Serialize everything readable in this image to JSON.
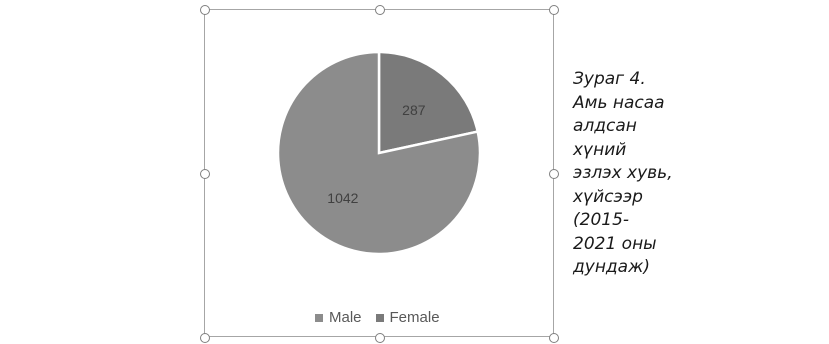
{
  "chart_data": {
    "type": "pie",
    "categories": [
      "Male",
      "Female"
    ],
    "values": [
      1042,
      287
    ],
    "colors": [
      "#8c8c8c",
      "#7a7a7a"
    ],
    "legend_position": "bottom",
    "start_angle": "12 o'clock, clockwise, Female first"
  },
  "caption": "Зураг  4.\nАмь насаа\nалдсан\nхүний\nэзлэх хувь,\nхүйсээр\n(2015-\n2021 оны\nдундаж)"
}
